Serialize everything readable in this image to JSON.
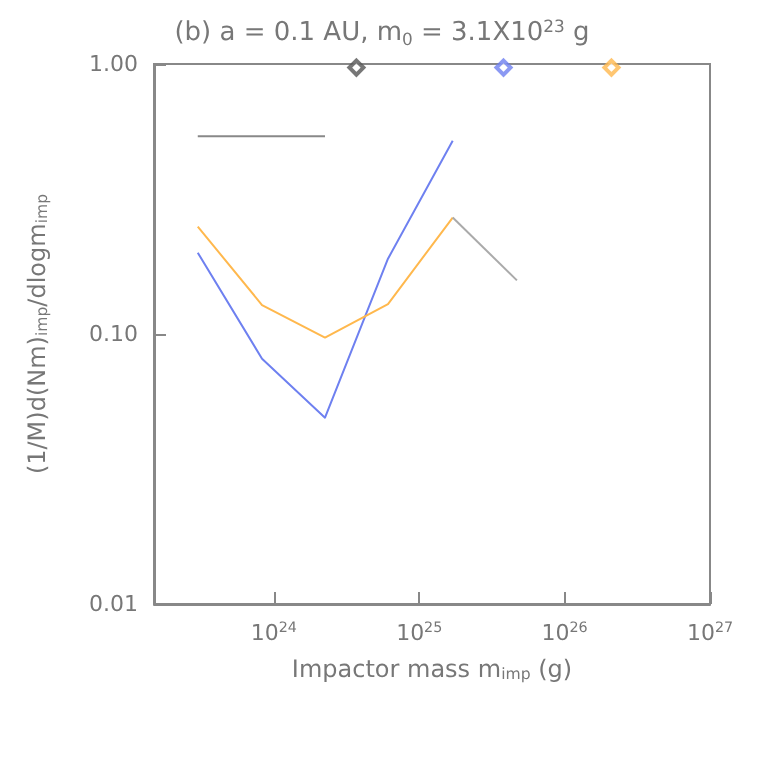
{
  "chart_data": {
    "type": "line",
    "title": "(b) a = 0.1 AU, m$_{0}$ = 3.1X10$^{23}$ g",
    "xlabel": "Impactor mass m$_{imp}$ (g)",
    "ylabel": "(1/M)d(Nm)$_{imp}$/dlogm$_{imp}$",
    "log": "xy",
    "marker": "none",
    "xlim": [
      1.5e+23,
      1e+27
    ],
    "xticks": [
      {
        "value": 1e+24,
        "label": "10$^{24}$"
      },
      {
        "value": 1e+25,
        "label": "10$^{25}$"
      },
      {
        "value": 1e+26,
        "label": "10$^{26}$"
      },
      {
        "value": 1e+27,
        "label": "10$^{27}$"
      }
    ],
    "ylim": [
      0.01,
      1
    ],
    "yticks": [
      {
        "value": 0.01,
        "label": "0.01"
      },
      {
        "value": 0.1,
        "label": "0.10"
      },
      {
        "value": 1,
        "label": "1.00"
      }
    ],
    "series": [
      {
        "color": "#888888",
        "x": [
          3e+23,
          8.3e+23,
          2.25e+24
        ],
        "values": [
          0.54,
          0.54,
          0.54
        ]
      },
      {
        "color": "#6e80f0",
        "x": [
          3e+23,
          8.3e+23,
          2.25e+24,
          6.1e+24,
          1.7e+25
        ],
        "values": [
          0.2,
          0.081,
          0.049,
          0.19,
          0.52
        ]
      },
      {
        "color": "#ffb84d",
        "x": [
          3e+23,
          8.3e+23,
          2.25e+24,
          6.1e+24,
          1.7e+25
        ],
        "values": [
          0.25,
          0.128,
          0.097,
          0.129,
          0.27
        ]
      },
      {
        "color": "#aaaaaa",
        "x": [
          1.7e+25,
          4.7e+25
        ],
        "values": [
          0.27,
          0.158
        ]
      },
      {
        "type": "scatter",
        "marker": "diamond",
        "color": "#555555",
        "x": [
          3.7e+24
        ],
        "values": [
          0.97
        ]
      },
      {
        "type": "scatter",
        "marker": "diamond",
        "color": "#6e80f0",
        "x": [
          3.8e+25
        ],
        "values": [
          0.97
        ]
      },
      {
        "type": "scatter",
        "marker": "diamond",
        "color": "#ffb84d",
        "x": [
          2.1e+26
        ],
        "values": [
          0.97
        ]
      }
    ]
  }
}
